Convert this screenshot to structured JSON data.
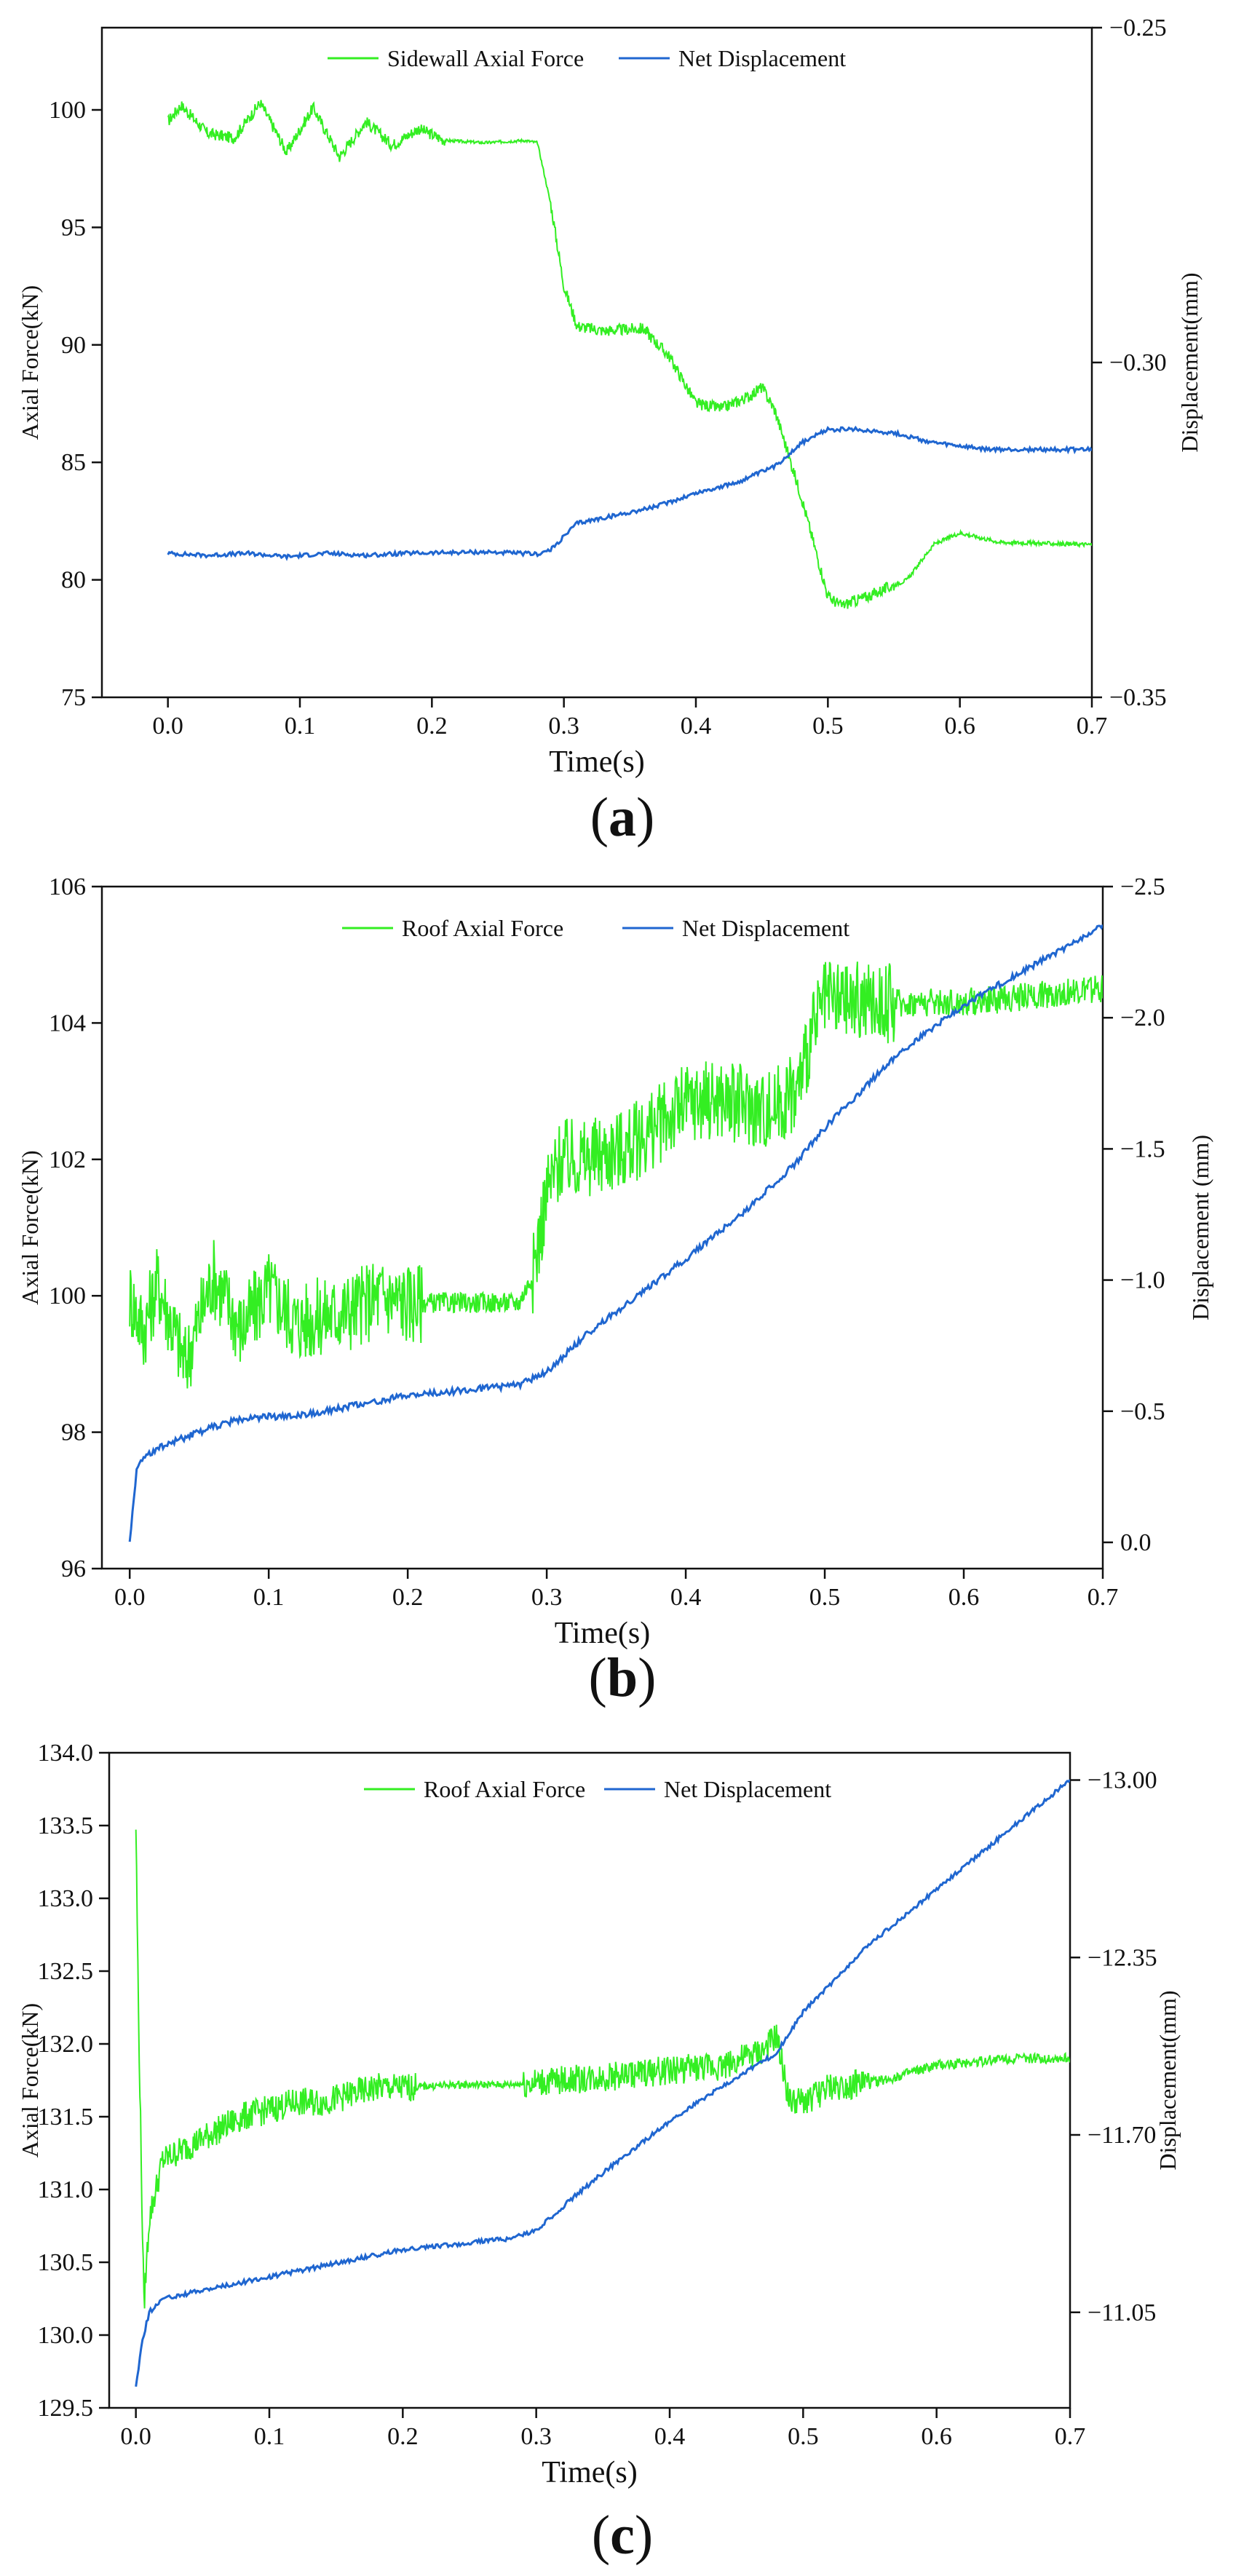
{
  "colors": {
    "force": "#33ee22",
    "displacement": "#1f66d0",
    "axis": "#111111"
  },
  "chart_data": [
    {
      "type": "line",
      "panel_label": "a",
      "xlabel": "Time(s)",
      "ylabel": "Axial Force(kN)",
      "y2label": "Displacement(mm)",
      "xlim": [
        -0.05,
        0.7
      ],
      "ylim": [
        75,
        103.5
      ],
      "y2lim": [
        -0.35,
        -0.25
      ],
      "xticks": [
        "0.0",
        "0.1",
        "0.2",
        "0.3",
        "0.4",
        "0.5",
        "0.6",
        "0.7"
      ],
      "yticks": [
        "75",
        "80",
        "85",
        "90",
        "95",
        "100"
      ],
      "y2ticks": [
        "-0.35",
        "-0.30",
        "-0.25"
      ],
      "legend": [
        "Sidewall Axial Force",
        "Net Displacement"
      ],
      "series": [
        {
          "name": "Sidewall Axial Force",
          "axis": "left",
          "noise": 0.25,
          "x": [
            0.0,
            0.01,
            0.03,
            0.05,
            0.07,
            0.09,
            0.11,
            0.13,
            0.15,
            0.17,
            0.19,
            0.21,
            0.24,
            0.27,
            0.28,
            0.29,
            0.3,
            0.31,
            0.33,
            0.36,
            0.38,
            0.4,
            0.42,
            0.44,
            0.45,
            0.46,
            0.48,
            0.5,
            0.51,
            0.53,
            0.56,
            0.58,
            0.6,
            0.63,
            0.7
          ],
          "values": [
            99.5,
            100.2,
            99.0,
            98.8,
            100.3,
            98.2,
            100.1,
            98.0,
            99.5,
            98.5,
            99.2,
            98.7,
            98.6,
            98.7,
            98.6,
            96.0,
            92.5,
            90.8,
            90.6,
            90.7,
            89.5,
            87.5,
            87.3,
            87.8,
            88.2,
            87.2,
            83.5,
            79.3,
            78.9,
            79.3,
            80.0,
            81.5,
            82.0,
            81.6,
            81.5
          ]
        },
        {
          "name": "Net Displacement",
          "axis": "right",
          "noise": 0.0003,
          "x": [
            0.0,
            0.03,
            0.06,
            0.09,
            0.12,
            0.15,
            0.18,
            0.21,
            0.24,
            0.28,
            0.29,
            0.31,
            0.34,
            0.37,
            0.4,
            0.43,
            0.46,
            0.48,
            0.5,
            0.52,
            0.55,
            0.58,
            0.62,
            0.66,
            0.7
          ],
          "values": [
            -0.3285,
            -0.3288,
            -0.3285,
            -0.329,
            -0.3285,
            -0.3288,
            -0.3285,
            -0.3284,
            -0.3283,
            -0.3286,
            -0.328,
            -0.324,
            -0.3228,
            -0.3215,
            -0.3195,
            -0.318,
            -0.3155,
            -0.312,
            -0.31,
            -0.31,
            -0.3105,
            -0.312,
            -0.313,
            -0.313,
            -0.313
          ]
        }
      ]
    },
    {
      "type": "line",
      "panel_label": "b",
      "xlabel": "Time(s)",
      "ylabel": "Axial Force(kN)",
      "y2label": "Displacement (mm)",
      "xlim": [
        -0.02,
        0.7
      ],
      "ylim": [
        96,
        106
      ],
      "y2lim": [
        0.1,
        -2.5
      ],
      "xticks": [
        "0.0",
        "0.1",
        "0.2",
        "0.3",
        "0.4",
        "0.5",
        "0.6",
        "0.7"
      ],
      "yticks": [
        "96",
        "98",
        "100",
        "102",
        "104",
        "106"
      ],
      "y2ticks": [
        "0.0",
        "-0.5",
        "-1.0",
        "-1.5",
        "-2.0",
        "-2.5"
      ],
      "legend": [
        "Roof Axial Force",
        "Net Displacement"
      ],
      "series": [
        {
          "name": "Roof Axial Force",
          "axis": "left",
          "noise": 0.6,
          "x": [
            0.0,
            0.01,
            0.02,
            0.04,
            0.06,
            0.08,
            0.1,
            0.12,
            0.14,
            0.16,
            0.18,
            0.2,
            0.22,
            0.25,
            0.28,
            0.29,
            0.3,
            0.31,
            0.33,
            0.36,
            0.38,
            0.4,
            0.42,
            0.44,
            0.46,
            0.48,
            0.49,
            0.5,
            0.52,
            0.55,
            0.6,
            0.65,
            0.7
          ],
          "values": [
            100.0,
            99.5,
            100.2,
            99.0,
            100.3,
            99.5,
            100.1,
            99.6,
            99.7,
            99.8,
            100.0,
            99.9,
            99.9,
            99.9,
            99.9,
            100.3,
            101.5,
            102.0,
            102.0,
            102.2,
            102.5,
            102.8,
            102.9,
            102.8,
            102.7,
            103.0,
            103.8,
            104.3,
            104.3,
            104.3,
            104.3,
            104.4,
            104.5
          ]
        },
        {
          "name": "Net Displacement",
          "axis": "right",
          "noise": 0.012,
          "x": [
            0.0,
            0.005,
            0.01,
            0.02,
            0.04,
            0.06,
            0.08,
            0.1,
            0.12,
            0.14,
            0.16,
            0.18,
            0.2,
            0.24,
            0.28,
            0.3,
            0.33,
            0.36,
            0.4,
            0.44,
            0.48,
            0.5,
            0.55,
            0.6,
            0.65,
            0.7
          ],
          "values": [
            0.0,
            -0.28,
            -0.32,
            -0.36,
            -0.4,
            -0.44,
            -0.47,
            -0.48,
            -0.48,
            -0.5,
            -0.52,
            -0.54,
            -0.56,
            -0.58,
            -0.6,
            -0.65,
            -0.8,
            -0.92,
            -1.08,
            -1.25,
            -1.45,
            -1.58,
            -1.85,
            -2.05,
            -2.2,
            -2.35
          ]
        }
      ]
    },
    {
      "type": "line",
      "panel_label": "c",
      "xlabel": "Time(s)",
      "ylabel": "Axial Force(kN)",
      "y2label": "Displacement(mm)",
      "xlim": [
        -0.02,
        0.7
      ],
      "ylim": [
        129.5,
        134.0
      ],
      "y2lim": [
        -10.7,
        -13.1
      ],
      "xticks": [
        "0.0",
        "0.1",
        "0.2",
        "0.3",
        "0.4",
        "0.5",
        "0.6",
        "0.7"
      ],
      "yticks": [
        "129.5",
        "130.0",
        "130.5",
        "131.0",
        "131.5",
        "132.0",
        "132.5",
        "133.0",
        "133.5",
        "134.0"
      ],
      "y2ticks": [
        "-11.05",
        "-11.70",
        "-12.35",
        "-13.00"
      ],
      "legend": [
        "Roof Axial Force",
        "Net Displacement"
      ],
      "series": [
        {
          "name": "Roof Axial Force",
          "axis": "left",
          "noise": 0.1,
          "x": [
            0.0,
            0.002,
            0.006,
            0.01,
            0.02,
            0.04,
            0.06,
            0.08,
            0.1,
            0.12,
            0.14,
            0.16,
            0.18,
            0.2,
            0.24,
            0.28,
            0.32,
            0.36,
            0.4,
            0.44,
            0.47,
            0.48,
            0.49,
            0.5,
            0.52,
            0.56,
            0.6,
            0.65,
            0.7
          ],
          "values": [
            133.5,
            132.2,
            130.2,
            130.8,
            131.2,
            131.3,
            131.4,
            131.5,
            131.55,
            131.6,
            131.6,
            131.65,
            131.7,
            131.7,
            131.72,
            131.72,
            131.75,
            131.78,
            131.82,
            131.85,
            131.95,
            132.05,
            131.6,
            131.6,
            131.7,
            131.75,
            131.85,
            131.9,
            131.9
          ]
        },
        {
          "name": "Net Displacement",
          "axis": "right",
          "noise": 0.008,
          "x": [
            0.0,
            0.005,
            0.01,
            0.02,
            0.04,
            0.06,
            0.08,
            0.1,
            0.12,
            0.14,
            0.16,
            0.18,
            0.2,
            0.24,
            0.28,
            0.3,
            0.33,
            0.36,
            0.4,
            0.44,
            0.48,
            0.5,
            0.55,
            0.6,
            0.65,
            0.7
          ],
          "values": [
            -10.78,
            -10.95,
            -11.05,
            -11.1,
            -11.12,
            -11.14,
            -11.16,
            -11.18,
            -11.2,
            -11.22,
            -11.24,
            -11.26,
            -11.28,
            -11.3,
            -11.32,
            -11.35,
            -11.48,
            -11.6,
            -11.75,
            -11.88,
            -12.0,
            -12.15,
            -12.4,
            -12.6,
            -12.8,
            -13.0
          ]
        }
      ]
    }
  ]
}
